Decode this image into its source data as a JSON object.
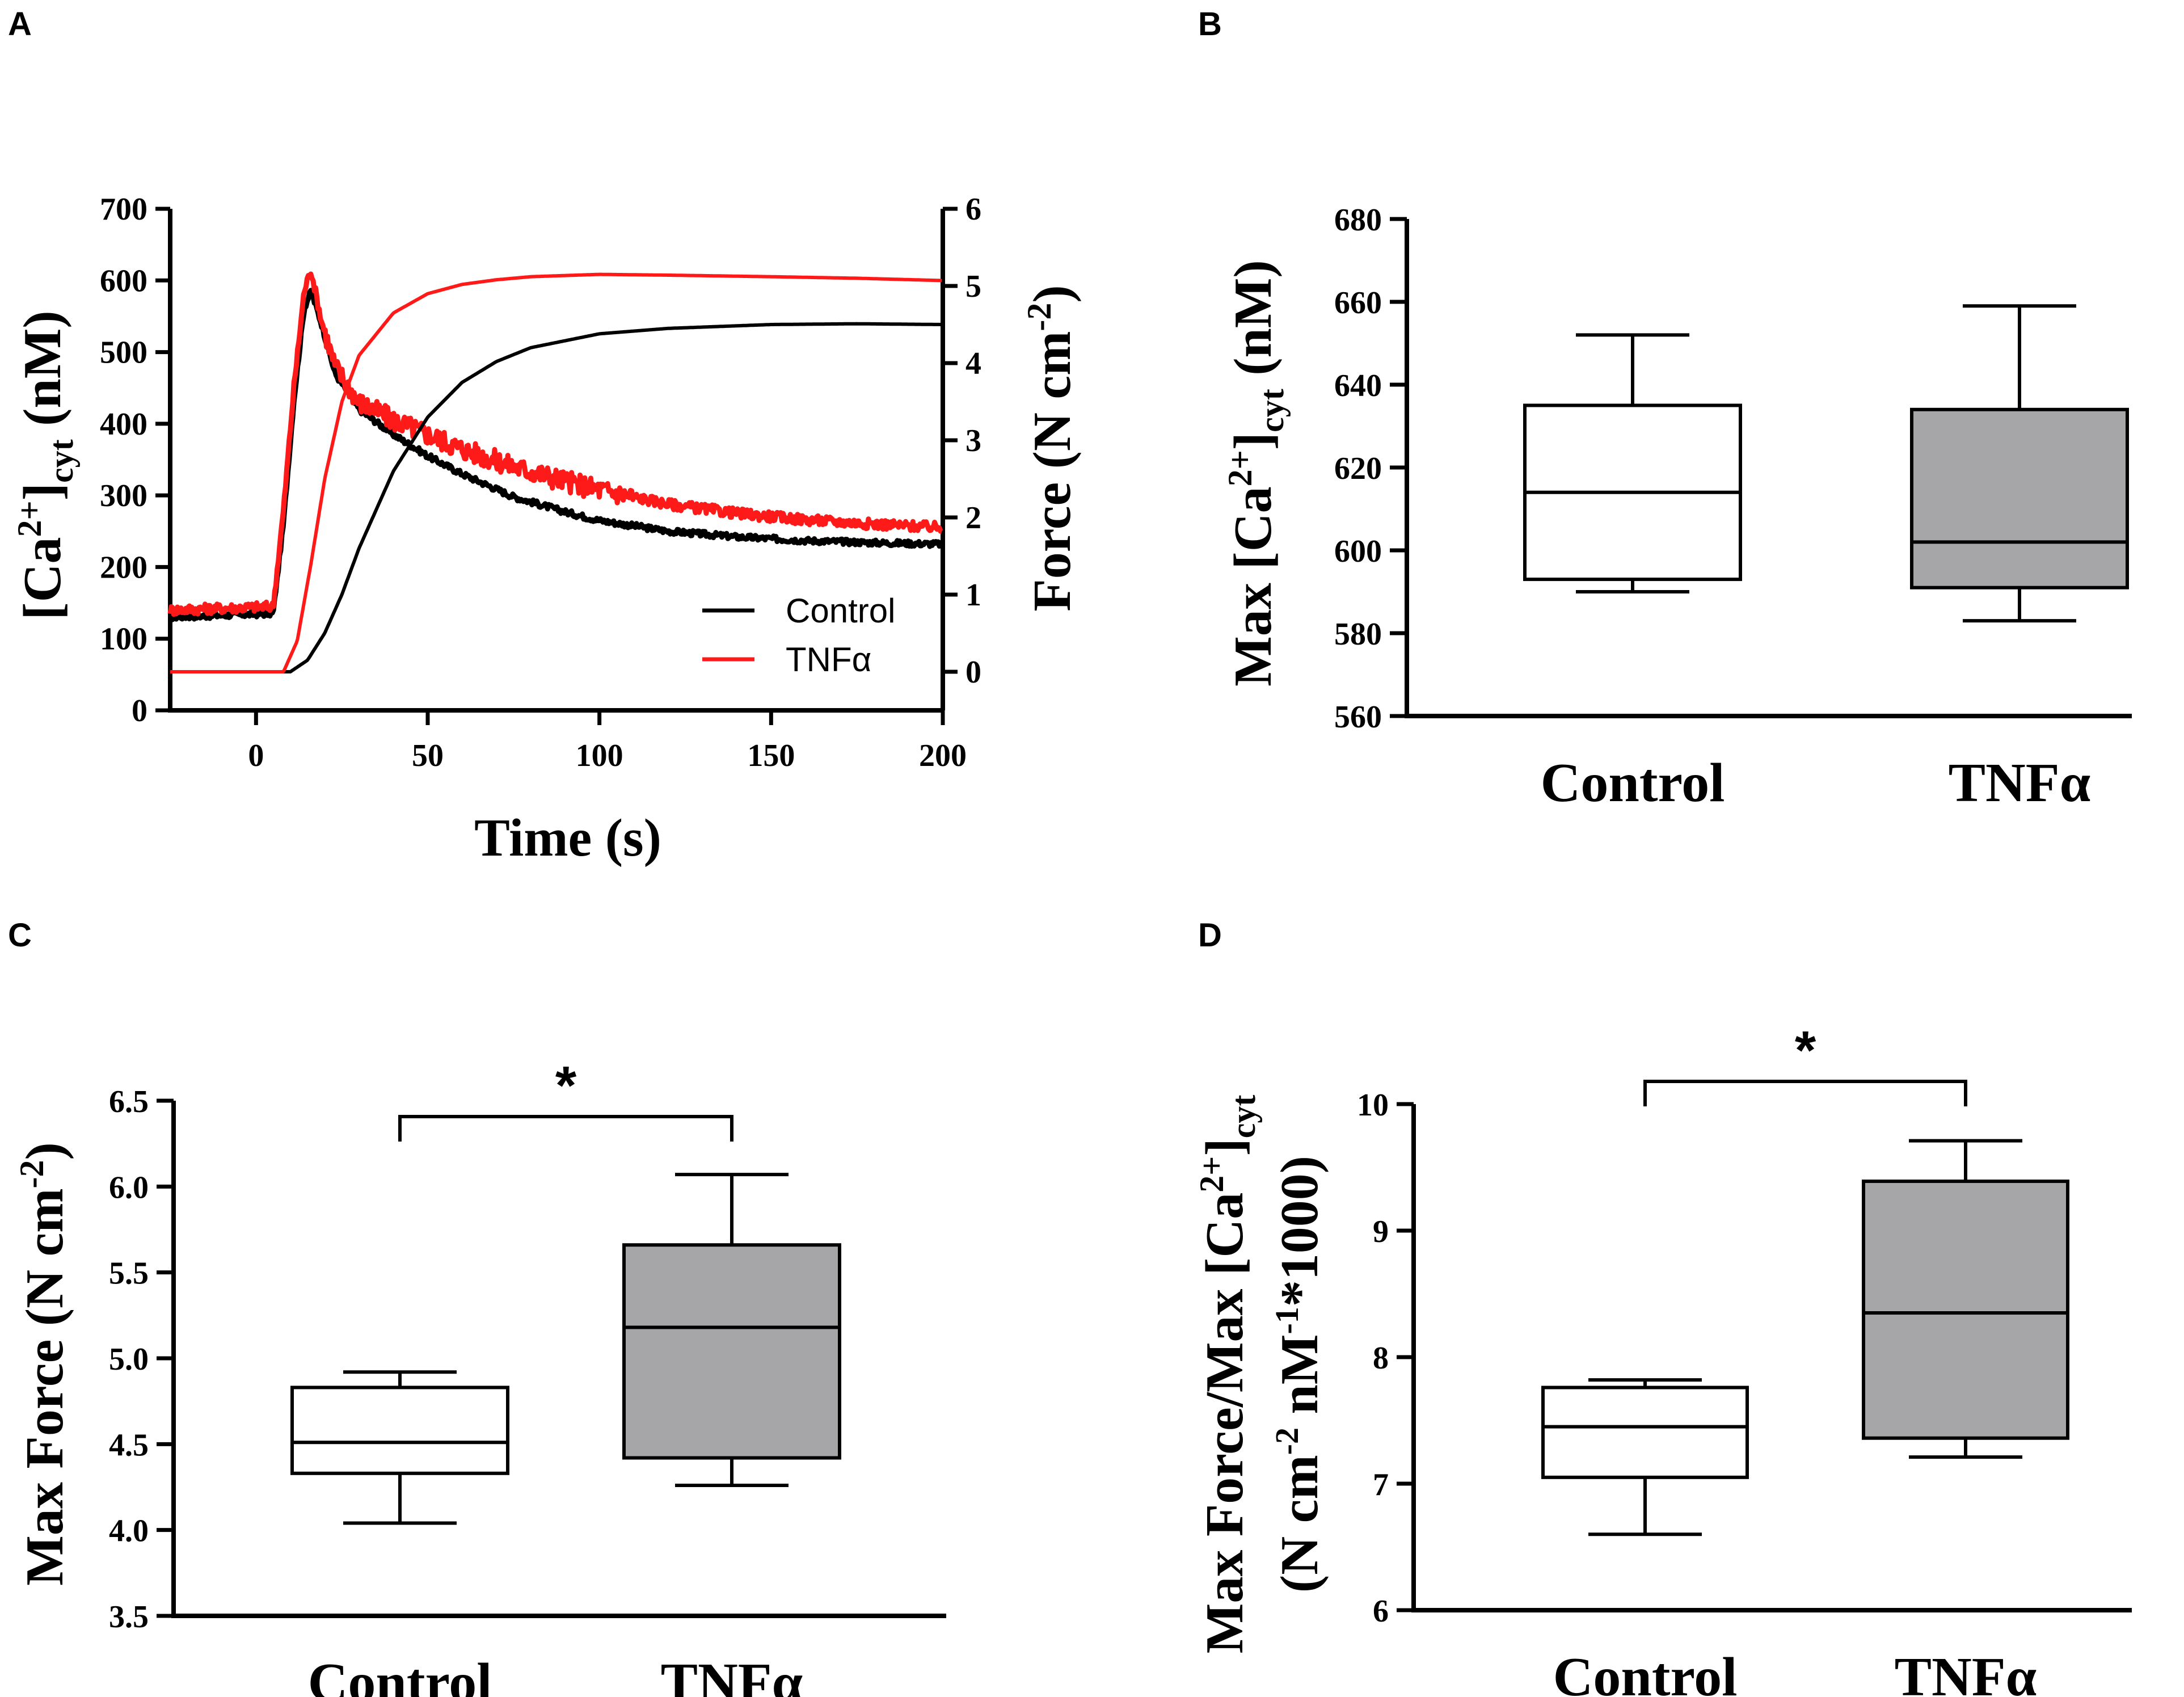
{
  "panels": {
    "A": "A",
    "B": "B",
    "C": "C",
    "D": "D"
  },
  "colors": {
    "control": "#000000",
    "tnf": "#ff1a1a",
    "box_control": "#ffffff",
    "box_tnf": "#a6a6a8"
  },
  "chart_data": [
    {
      "id": "A",
      "type": "line",
      "xlabel": "Time (s)",
      "ylabel_left": {
        "text": "[Ca",
        "sup": "2+",
        "close": "]",
        "sub": "cyt",
        "unit": " (nM)"
      },
      "ylabel_right": {
        "text": "Force (N cm",
        "sup": "-2",
        "close": ")"
      },
      "xlim": [
        -25,
        200
      ],
      "xticks": [
        0,
        50,
        100,
        150,
        200
      ],
      "ylim_left": [
        0,
        700
      ],
      "yticks_left": [
        0,
        100,
        200,
        300,
        400,
        500,
        600,
        700
      ],
      "ylim_right": [
        -0.5,
        6
      ],
      "yticks_right": [
        0,
        1,
        2,
        3,
        4,
        5,
        6
      ],
      "legend": [
        "Control",
        "TNFα"
      ],
      "legend_position": "lower-right",
      "series": [
        {
          "name": "Control",
          "axis": "left",
          "kind": "calcium",
          "x": [
            -25,
            5,
            8,
            11,
            14,
            16,
            19,
            23,
            30,
            40,
            50,
            60,
            75,
            90,
            100,
            120,
            140,
            160,
            180,
            200
          ],
          "y": [
            130,
            135,
            260,
            430,
            560,
            585,
            540,
            470,
            420,
            385,
            355,
            330,
            298,
            277,
            265,
            250,
            242,
            237,
            234,
            232
          ]
        },
        {
          "name": "TNFα",
          "axis": "left",
          "kind": "calcium",
          "x": [
            -25,
            5,
            8,
            11,
            14,
            16,
            19,
            23,
            30,
            40,
            50,
            60,
            75,
            90,
            100,
            120,
            140,
            160,
            180,
            200
          ],
          "y": [
            140,
            145,
            280,
            450,
            585,
            615,
            545,
            480,
            430,
            405,
            385,
            365,
            340,
            320,
            308,
            288,
            275,
            266,
            260,
            255
          ]
        },
        {
          "name": "Control",
          "axis": "right",
          "kind": "force",
          "x": [
            -25,
            10,
            15,
            20,
            25,
            30,
            40,
            50,
            60,
            70,
            80,
            100,
            120,
            150,
            175,
            200
          ],
          "y": [
            0,
            0,
            0.15,
            0.5,
            1.0,
            1.6,
            2.6,
            3.3,
            3.75,
            4.02,
            4.2,
            4.38,
            4.45,
            4.5,
            4.51,
            4.5
          ]
        },
        {
          "name": "TNFα",
          "axis": "right",
          "kind": "force",
          "x": [
            -25,
            8,
            12,
            16,
            20,
            25,
            30,
            40,
            50,
            60,
            70,
            80,
            100,
            120,
            150,
            175,
            200
          ],
          "y": [
            0,
            0,
            0.4,
            1.4,
            2.5,
            3.5,
            4.1,
            4.65,
            4.9,
            5.02,
            5.08,
            5.12,
            5.15,
            5.14,
            5.12,
            5.1,
            5.07
          ]
        }
      ]
    },
    {
      "id": "B",
      "type": "box",
      "ylabel": {
        "text": "Max [Ca",
        "sup": "2+",
        "close": "]",
        "sub": "cyt",
        "unit": " (nM)"
      },
      "ylim": [
        560,
        680
      ],
      "yticks": [
        560,
        580,
        600,
        620,
        640,
        660,
        680
      ],
      "categories": [
        "Control",
        "TNFα"
      ],
      "series": [
        {
          "name": "Control",
          "min": 590,
          "q1": 593,
          "median": 614,
          "q3": 635,
          "max": 652
        },
        {
          "name": "TNFα",
          "min": 583,
          "q1": 591,
          "median": 602,
          "q3": 634,
          "max": 659
        }
      ]
    },
    {
      "id": "C",
      "type": "box",
      "ylabel": {
        "text": "Max Force (N cm",
        "sup": "-2",
        "close": ")"
      },
      "ylim": [
        3.5,
        6.5
      ],
      "yticks": [
        3.5,
        4.0,
        4.5,
        5.0,
        5.5,
        6.0,
        6.5
      ],
      "categories": [
        "Control",
        "TNFα"
      ],
      "significance": "*",
      "series": [
        {
          "name": "Control",
          "min": 4.04,
          "q1": 4.33,
          "median": 4.51,
          "q3": 4.83,
          "max": 4.92
        },
        {
          "name": "TNFα",
          "min": 4.26,
          "q1": 4.42,
          "median": 5.18,
          "q3": 5.66,
          "max": 6.07
        }
      ]
    },
    {
      "id": "D",
      "type": "box",
      "ylabel": {
        "text": "Max Force/Max [Ca",
        "sup": "2+",
        "close": "]",
        "sub": "cyt"
      },
      "ylabel2": {
        "text": "(N cm",
        "sup": "-2",
        "mid": " nM",
        "sup2": "-1",
        "end": "*1000)"
      },
      "ylim": [
        6,
        10
      ],
      "yticks": [
        6,
        7,
        8,
        9,
        10
      ],
      "categories": [
        "Control",
        "TNFα"
      ],
      "significance": "*",
      "series": [
        {
          "name": "Control",
          "min": 6.6,
          "q1": 7.05,
          "median": 7.45,
          "q3": 7.76,
          "max": 7.82
        },
        {
          "name": "TNFα",
          "min": 7.21,
          "q1": 7.36,
          "median": 8.35,
          "q3": 9.39,
          "max": 9.71
        }
      ]
    }
  ]
}
